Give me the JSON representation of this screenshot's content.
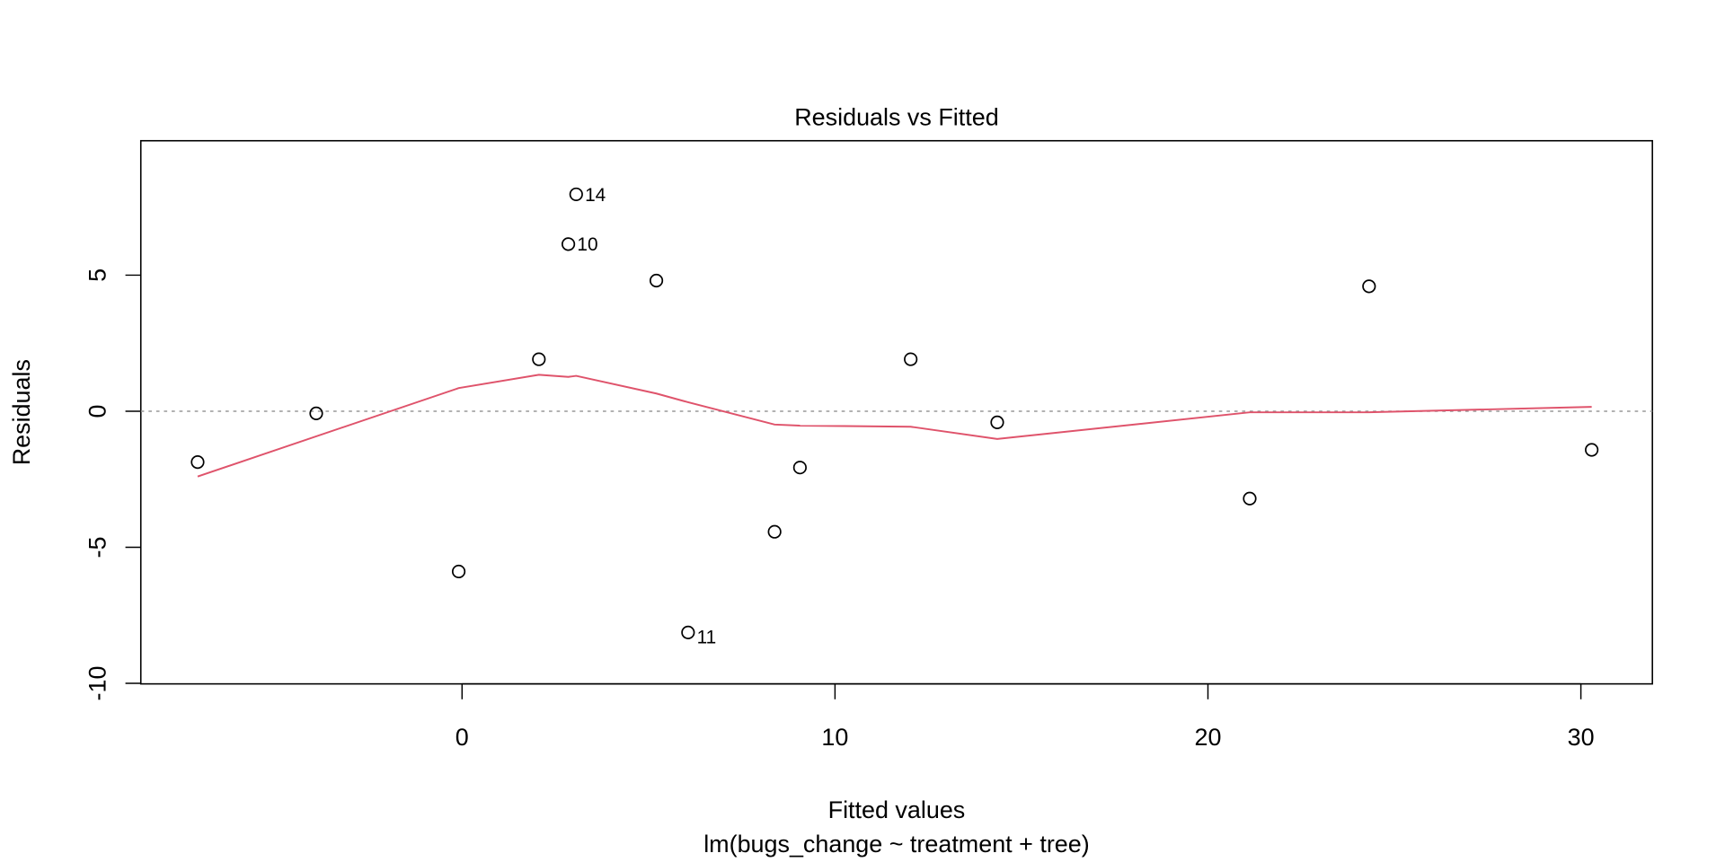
{
  "chart_data": {
    "type": "scatter",
    "title": "Residuals vs Fitted",
    "xlabel": "Fitted values",
    "subtitle": "lm(bugs_change ~ treatment + tree)",
    "ylabel": "Residuals",
    "xlim": [
      -8.6,
      31.9
    ],
    "ylim": [
      -10.1,
      9.9
    ],
    "x_ticks": [
      0,
      10,
      20,
      30
    ],
    "x_tick_labels": [
      "0",
      "10",
      "20",
      "30"
    ],
    "y_ticks": [
      -10,
      -5,
      0,
      5
    ],
    "y_tick_labels": [
      "-10",
      "-5",
      "0",
      "5"
    ],
    "grid": false,
    "reference_line": 0,
    "points": [
      {
        "x": -7.09,
        "y": -1.87,
        "label": ""
      },
      {
        "x": -3.91,
        "y": -0.08,
        "label": ""
      },
      {
        "x": -0.09,
        "y": -5.89,
        "label": ""
      },
      {
        "x": 2.06,
        "y": 1.91,
        "label": ""
      },
      {
        "x": 2.85,
        "y": 6.14,
        "label": "10"
      },
      {
        "x": 3.06,
        "y": 7.97,
        "label": "14"
      },
      {
        "x": 5.21,
        "y": 4.8,
        "label": ""
      },
      {
        "x": 6.06,
        "y": -8.13,
        "label": "11"
      },
      {
        "x": 8.38,
        "y": -4.43,
        "label": ""
      },
      {
        "x": 9.06,
        "y": -2.07,
        "label": ""
      },
      {
        "x": 12.03,
        "y": 1.91,
        "label": ""
      },
      {
        "x": 14.35,
        "y": -0.41,
        "label": ""
      },
      {
        "x": 21.12,
        "y": -3.21,
        "label": ""
      },
      {
        "x": 24.32,
        "y": 4.59,
        "label": ""
      },
      {
        "x": 30.29,
        "y": -1.42,
        "label": ""
      }
    ],
    "smooth": {
      "name": "lowess",
      "color": "#DF536B",
      "x": [
        -7.09,
        -0.09,
        2.06,
        2.85,
        3.06,
        5.21,
        6.06,
        8.38,
        9.06,
        12.03,
        14.35,
        21.12,
        24.32,
        30.29
      ],
      "y": [
        -2.4,
        0.85,
        1.34,
        1.26,
        1.3,
        0.65,
        0.33,
        -0.49,
        -0.53,
        -0.57,
        -1.02,
        -0.04,
        -0.04,
        0.16
      ]
    }
  }
}
